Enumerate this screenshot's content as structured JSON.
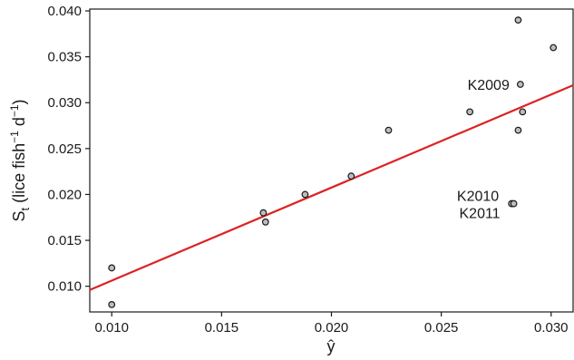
{
  "chart_data": {
    "type": "scatter",
    "title": "",
    "xlabel": "ŷ",
    "ylabel": "S",
    "ylabel_sub": "t",
    "ylabel_unit_pre": " (lice fish",
    "ylabel_unit_sup1": "−1",
    "ylabel_unit_mid": " d",
    "ylabel_unit_sup2": "−1",
    "ylabel_unit_post": ")",
    "xlim": [
      0.009,
      0.031
    ],
    "ylim": [
      0.0072,
      0.0402
    ],
    "x_ticks": [
      0.01,
      0.015,
      0.02,
      0.025,
      0.03
    ],
    "x_tick_labels": [
      "0.010",
      "0.015",
      "0.020",
      "0.025",
      "0.030"
    ],
    "y_ticks": [
      0.01,
      0.015,
      0.02,
      0.025,
      0.03,
      0.035,
      0.04
    ],
    "y_tick_labels": [
      "0.010",
      "0.015",
      "0.020",
      "0.025",
      "0.030",
      "0.035",
      "0.040"
    ],
    "grid": false,
    "series": [
      {
        "points": [
          {
            "x": 0.01,
            "y": 0.012
          },
          {
            "x": 0.01,
            "y": 0.008
          },
          {
            "x": 0.0169,
            "y": 0.018
          },
          {
            "x": 0.017,
            "y": 0.017
          },
          {
            "x": 0.0188,
            "y": 0.02
          },
          {
            "x": 0.0209,
            "y": 0.022
          },
          {
            "x": 0.0226,
            "y": 0.027
          },
          {
            "x": 0.0263,
            "y": 0.029
          },
          {
            "x": 0.0282,
            "y": 0.019
          },
          {
            "x": 0.0283,
            "y": 0.019
          },
          {
            "x": 0.0285,
            "y": 0.039
          },
          {
            "x": 0.0285,
            "y": 0.027
          },
          {
            "x": 0.0286,
            "y": 0.032
          },
          {
            "x": 0.0287,
            "y": 0.029
          },
          {
            "x": 0.0301,
            "y": 0.036
          }
        ]
      }
    ],
    "fit_line": {
      "x0": 0.009,
      "y0": 0.0096,
      "x1": 0.031,
      "y1": 0.0319,
      "color": "#dd2222"
    },
    "marker": {
      "fill": "#bdbdbd",
      "stroke": "#1a1a1a"
    },
    "annotations": [
      {
        "text": "K2009",
        "x": 0.0286,
        "y": 0.032
      },
      {
        "text": "K2010",
        "x": 0.0282,
        "y": 0.019
      },
      {
        "text": "K2011",
        "x": 0.0283,
        "y": 0.019
      }
    ]
  }
}
